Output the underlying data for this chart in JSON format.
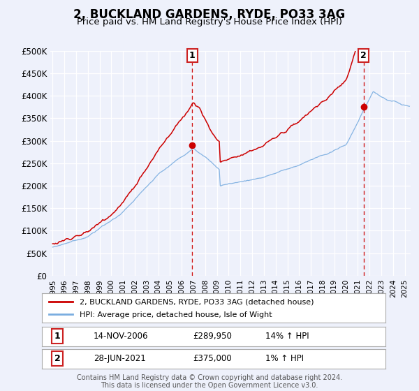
{
  "title": "2, BUCKLAND GARDENS, RYDE, PO33 3AG",
  "subtitle": "Price paid vs. HM Land Registry's House Price Index (HPI)",
  "red_line_label": "2, BUCKLAND GARDENS, RYDE, PO33 3AG (detached house)",
  "blue_line_label": "HPI: Average price, detached house, Isle of Wight",
  "sale1_date": "14-NOV-2006",
  "sale1_price": "£289,950",
  "sale1_hpi": "14% ↑ HPI",
  "sale2_date": "28-JUN-2021",
  "sale2_price": "£375,000",
  "sale2_hpi": "1% ↑ HPI",
  "vline1_x": 2006.88,
  "vline2_x": 2021.5,
  "marker1_y": 289950,
  "marker2_y": 375000,
  "ylim_min": 0,
  "ylim_max": 500000,
  "xlim_min": 1994.8,
  "xlim_max": 2025.5,
  "yticks": [
    0,
    50000,
    100000,
    150000,
    200000,
    250000,
    300000,
    350000,
    400000,
    450000,
    500000
  ],
  "ytick_labels": [
    "£0",
    "£50K",
    "£100K",
    "£150K",
    "£200K",
    "£250K",
    "£300K",
    "£350K",
    "£400K",
    "£450K",
    "£500K"
  ],
  "bg_color": "#eef1fb",
  "red_color": "#cc0000",
  "blue_color": "#7aade0",
  "vline_color": "#cc0000",
  "grid_color": "#ffffff",
  "footer_text": "Contains HM Land Registry data © Crown copyright and database right 2024.\nThis data is licensed under the Open Government Licence v3.0.",
  "xticks": [
    1995,
    1996,
    1997,
    1998,
    1999,
    2000,
    2001,
    2002,
    2003,
    2004,
    2005,
    2006,
    2007,
    2008,
    2009,
    2010,
    2011,
    2012,
    2013,
    2014,
    2015,
    2016,
    2017,
    2018,
    2019,
    2020,
    2021,
    2022,
    2023,
    2024,
    2025
  ]
}
